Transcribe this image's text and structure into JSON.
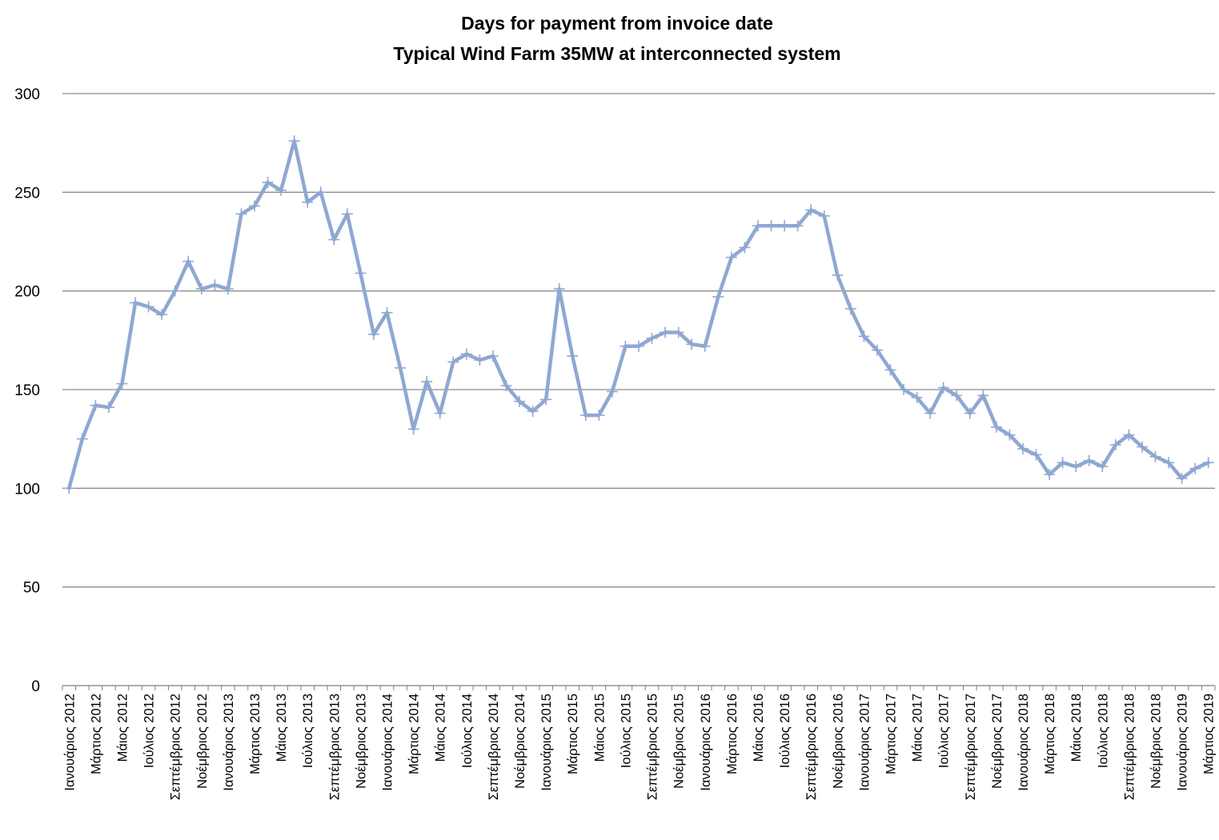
{
  "chart_data": {
    "type": "line",
    "title": [
      "Days for payment from invoice date",
      "Typical Wind Farm 35MW at interconnected system"
    ],
    "xlabel": "",
    "ylabel": "",
    "ylim": [
      0,
      300
    ],
    "yticks": [
      0,
      50,
      100,
      150,
      200,
      250,
      300
    ],
    "grid": true,
    "legend": "none",
    "colors": {
      "line": "#8fa8d2",
      "grid": "#8c8c8c",
      "axis": "#7f7f7f"
    },
    "x_tick_labels": [
      "Ιανουάριος 2012",
      "Μάρτιος 2012",
      "Μάιος 2012",
      "Ιούλιος 2012",
      "Σεπτέμβριος 2012",
      "Νοέμβριος 2012",
      "Ιανουάριος 2013",
      "Μάρτιος 2013",
      "Μάιος 2013",
      "Ιούλιος 2013",
      "Σεπτέμβριος 2013",
      "Νοέμβριος 2013",
      "Ιανουάριος 2014",
      "Μάρτιος 2014",
      "Μάιος 2014",
      "Ιούλιος 2014",
      "Σεπτέμβριος 2014",
      "Νοέμβριος 2014",
      "Ιανουάριος 2015",
      "Μάρτιος 2015",
      "Μάιος 2015",
      "Ιούλιος 2015",
      "Σεπτέμβριος 2015",
      "Νοέμβριος 2015",
      "Ιανουάριος 2016",
      "Μάρτιος 2016",
      "Μάιος 2016",
      "Ιούλιος 2016",
      "Σεπτέμβριος 2016",
      "Νοέμβριος 2016",
      "Ιανουάριος 2017",
      "Μάρτιος 2017",
      "Μάιος 2017",
      "Ιούλιος 2017",
      "Σεπτέμβριος 2017",
      "Νοέμβριος 2017",
      "Ιανουάριος 2018",
      "Μάρτιος 2018",
      "Μάιος 2018",
      "Ιούλιος 2018",
      "Σεπτέμβριος 2018",
      "Νοέμβριος 2018",
      "Ιανουάριος 2019",
      "Μάρτιος 2019"
    ],
    "x": [
      "2012-01",
      "2012-02",
      "2012-03",
      "2012-04",
      "2012-05",
      "2012-06",
      "2012-07",
      "2012-08",
      "2012-09",
      "2012-10",
      "2012-11",
      "2012-12",
      "2013-01",
      "2013-02",
      "2013-03",
      "2013-04",
      "2013-05",
      "2013-06",
      "2013-07",
      "2013-08",
      "2013-09",
      "2013-10",
      "2013-11",
      "2013-12",
      "2014-01",
      "2014-02",
      "2014-03",
      "2014-04",
      "2014-05",
      "2014-06",
      "2014-07",
      "2014-08",
      "2014-09",
      "2014-10",
      "2014-11",
      "2014-12",
      "2015-01",
      "2015-02",
      "2015-03",
      "2015-04",
      "2015-05",
      "2015-06",
      "2015-07",
      "2015-08",
      "2015-09",
      "2015-10",
      "2015-11",
      "2015-12",
      "2016-01",
      "2016-02",
      "2016-03",
      "2016-04",
      "2016-05",
      "2016-06",
      "2016-07",
      "2016-08",
      "2016-09",
      "2016-10",
      "2016-11",
      "2016-12",
      "2017-01",
      "2017-02",
      "2017-03",
      "2017-04",
      "2017-05",
      "2017-06",
      "2017-07",
      "2017-08",
      "2017-09",
      "2017-10",
      "2017-11",
      "2017-12",
      "2018-01",
      "2018-02",
      "2018-03",
      "2018-04",
      "2018-05",
      "2018-06",
      "2018-07",
      "2018-08",
      "2018-09",
      "2018-10",
      "2018-11",
      "2018-12",
      "2019-01",
      "2019-02",
      "2019-03"
    ],
    "series": [
      {
        "values": [
          100,
          125,
          142,
          141,
          153,
          194,
          192,
          188,
          200,
          215,
          201,
          203,
          201,
          239,
          243,
          255,
          251,
          276,
          245,
          250,
          226,
          239,
          209,
          178,
          189,
          161,
          130,
          154,
          138,
          164,
          168,
          165,
          167,
          152,
          144,
          139,
          145,
          201,
          167,
          137,
          137,
          149,
          172,
          172,
          176,
          179,
          179,
          173,
          172,
          197,
          217,
          222,
          233,
          233,
          233,
          233,
          241,
          238,
          208,
          191,
          177,
          170,
          160,
          150,
          146,
          138,
          151,
          147,
          138,
          147,
          131,
          127,
          120,
          117,
          107,
          113,
          111,
          114,
          111,
          122,
          127,
          121,
          116,
          113,
          105,
          110,
          113
        ]
      }
    ]
  }
}
